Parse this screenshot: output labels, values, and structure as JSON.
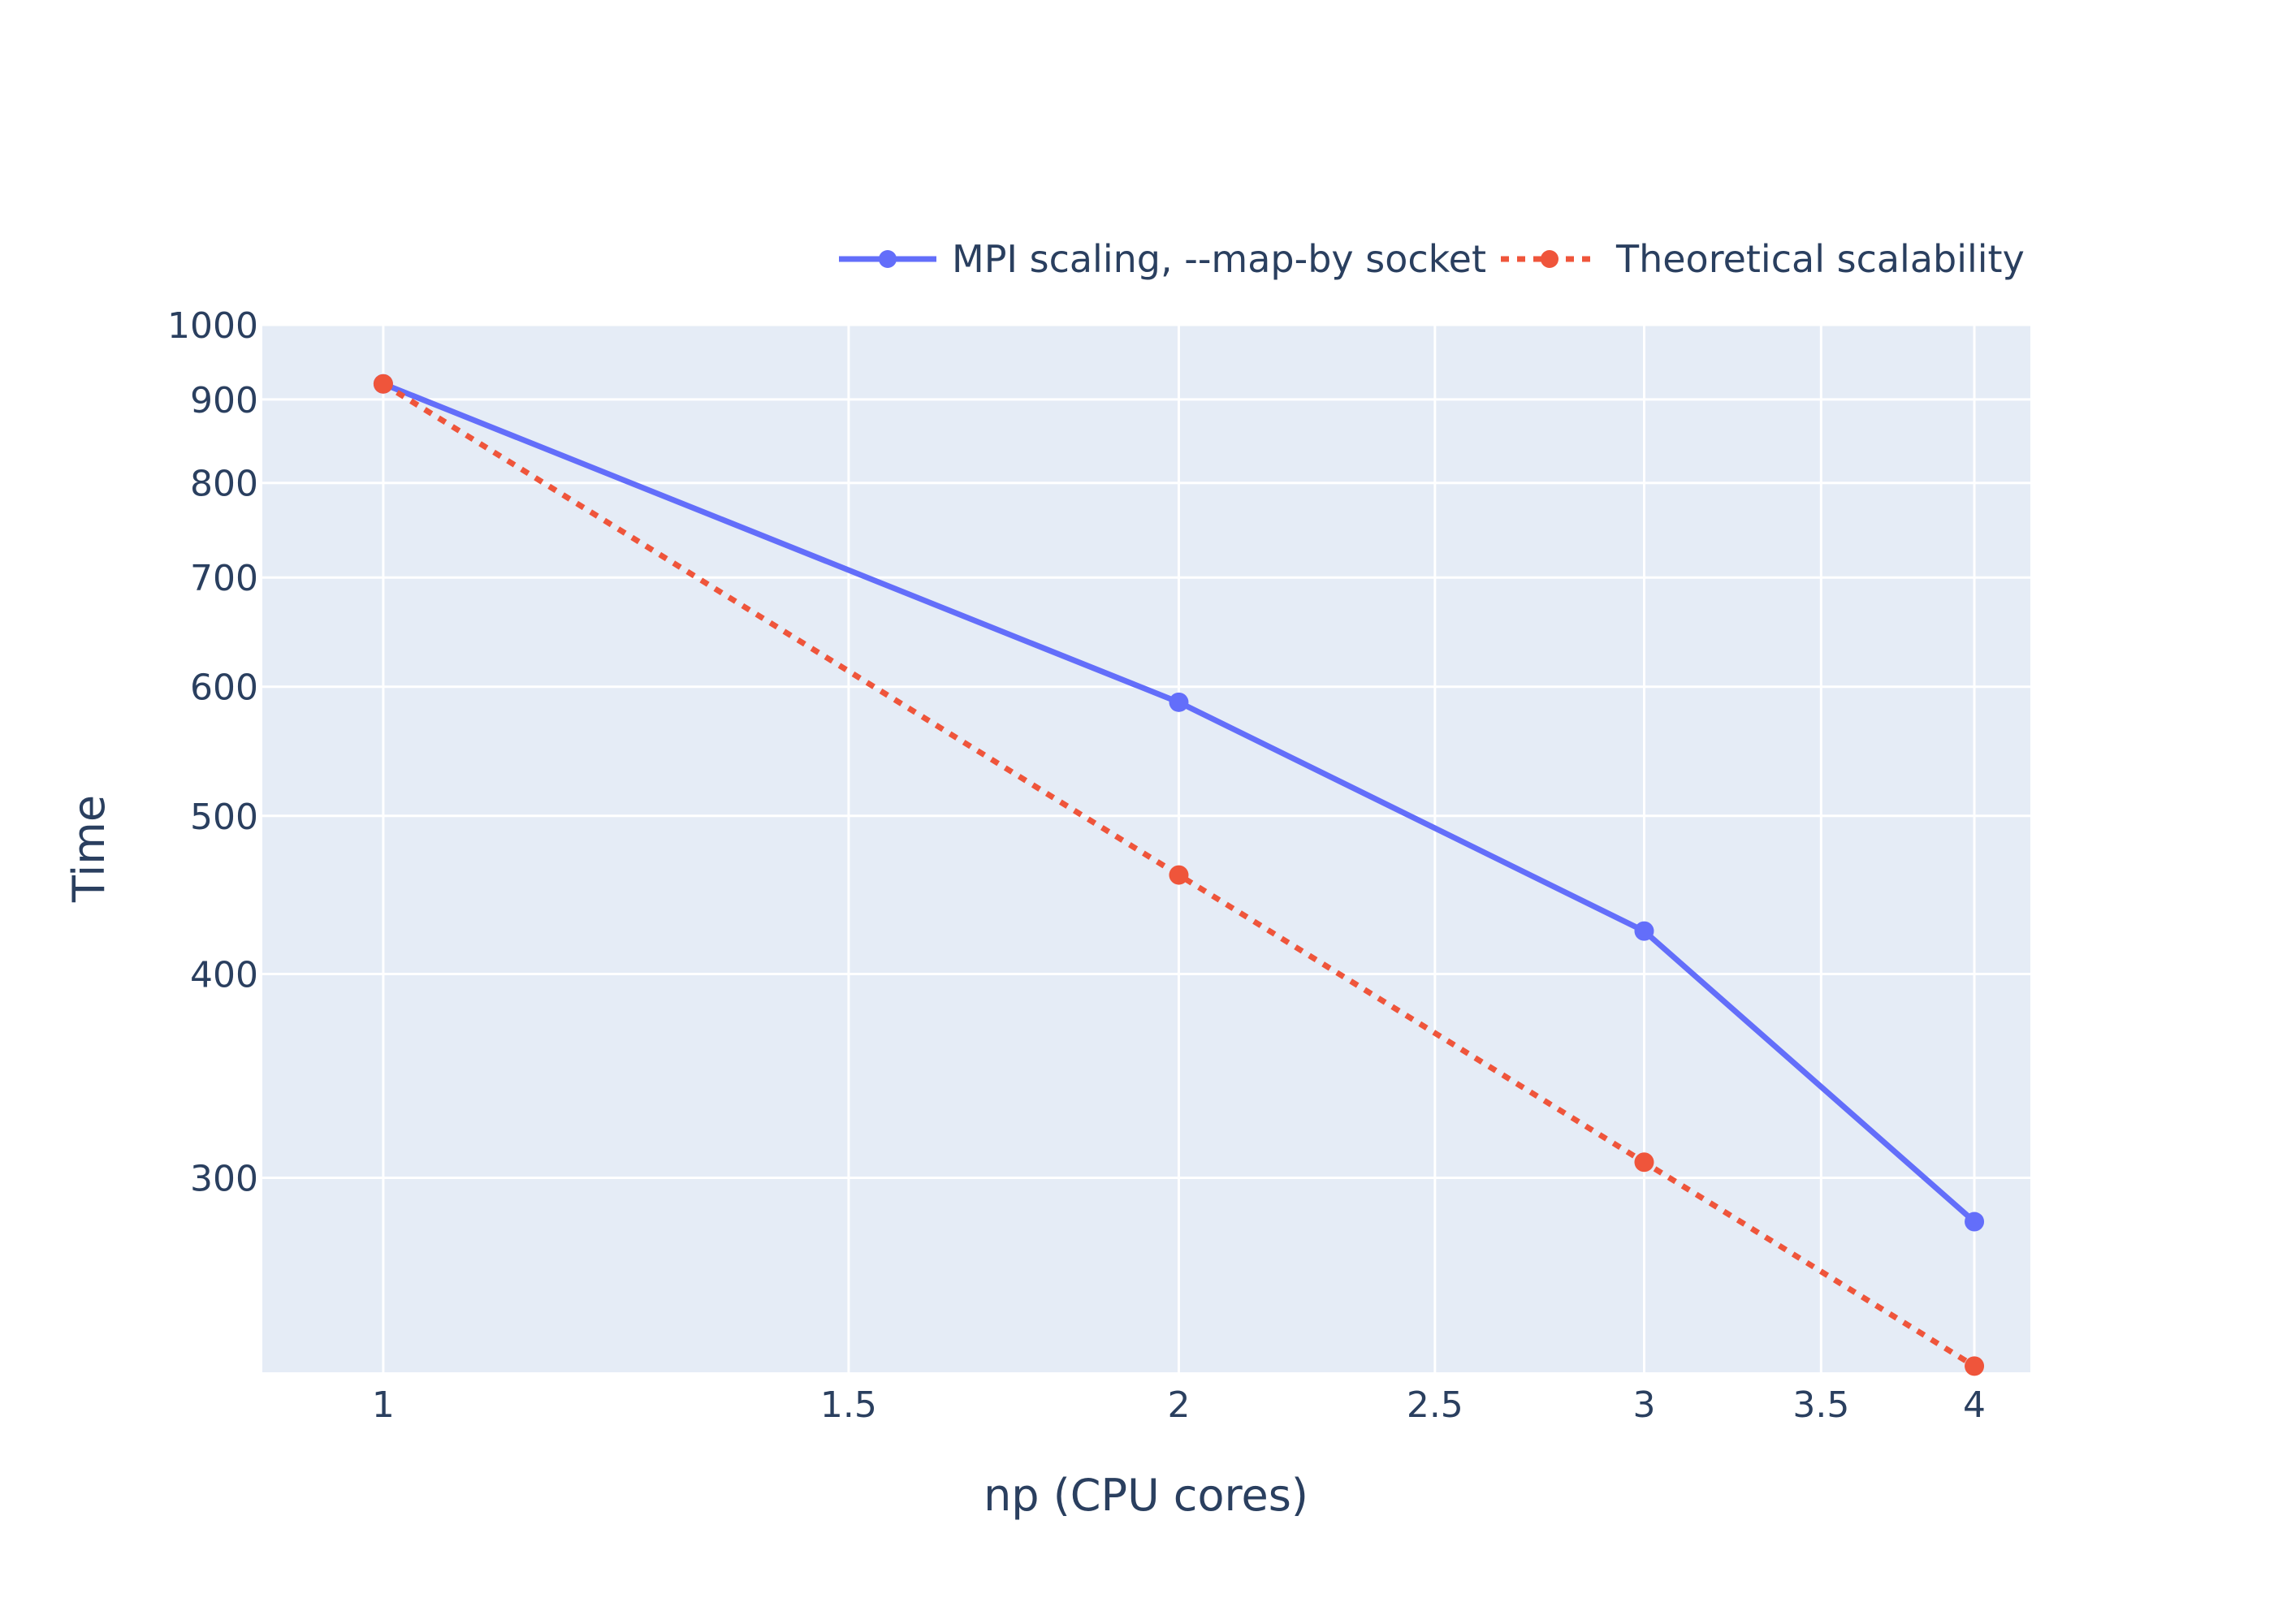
{
  "colors": {
    "plot_bg": "#e5ecf6",
    "grid": "#ffffff",
    "text": "#2a3f5f",
    "series_mpi": "#636efa",
    "series_theory": "#ef553b"
  },
  "chart_data": {
    "type": "line",
    "title": "",
    "xlabel": "np (CPU cores)",
    "ylabel": "Time",
    "x_scale": "log",
    "y_scale": "log",
    "xlim": [
      0.9,
      4.2
    ],
    "ylim": [
      228,
      1000
    ],
    "grid": true,
    "legend_position": "top-right",
    "x_ticks": [
      1,
      1.5,
      2,
      2.5,
      3,
      3.5,
      4
    ],
    "x_tick_labels": [
      "1",
      "1.5",
      "2",
      "2.5",
      "3",
      "3.5",
      "4"
    ],
    "y_ticks": [
      300,
      400,
      500,
      600,
      700,
      800,
      900,
      1000
    ],
    "y_tick_labels": [
      "300",
      "400",
      "500",
      "600",
      "700",
      "800",
      "900",
      "1000"
    ],
    "series": [
      {
        "name": "MPI scaling, --map-by socket",
        "style": "solid",
        "color": "#636efa",
        "x": [
          1,
          2,
          3,
          4
        ],
        "y": [
          920,
          587,
          425,
          282
        ]
      },
      {
        "name": "Theoretical scalability",
        "style": "dotted",
        "color": "#ef553b",
        "x": [
          1,
          2,
          3,
          4
        ],
        "y": [
          920,
          460,
          306.7,
          230
        ]
      }
    ]
  }
}
